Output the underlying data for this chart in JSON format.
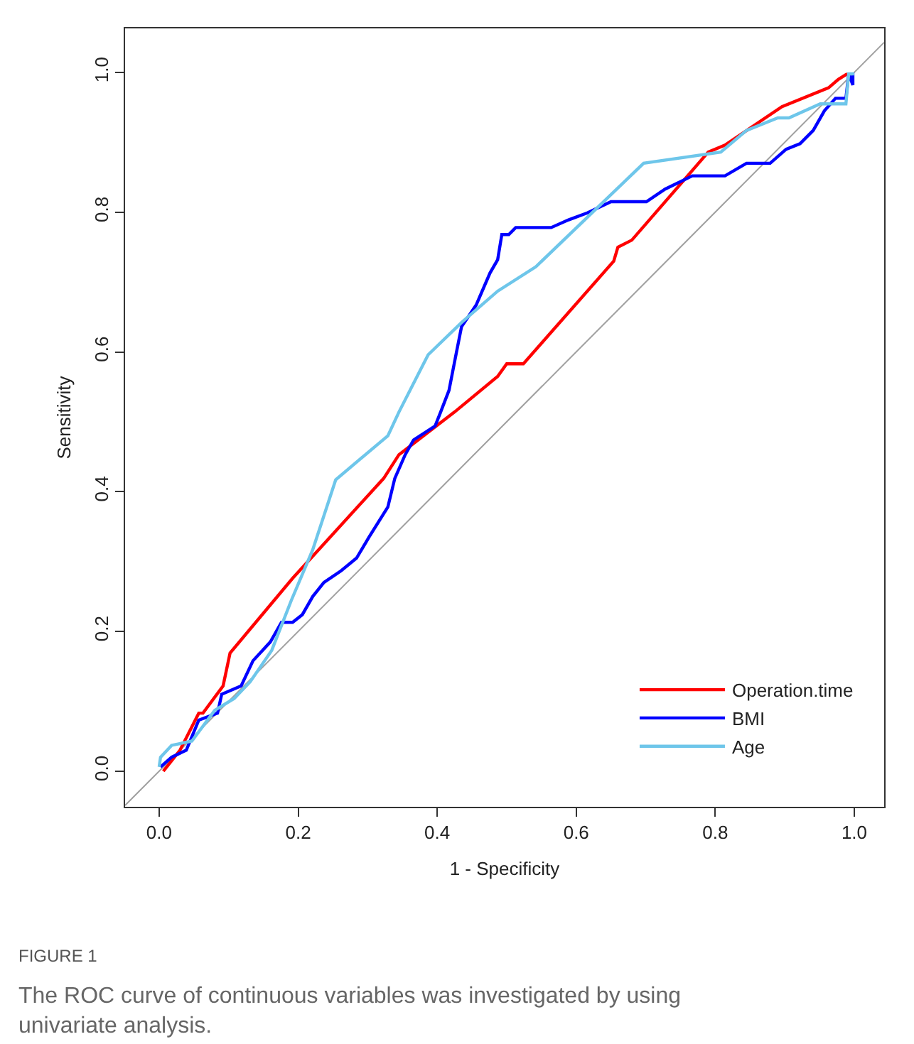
{
  "chart_data": {
    "type": "line",
    "xlabel": "1 - Specificity",
    "ylabel": "Sensitivity",
    "xlim": [
      -0.049,
      1.043
    ],
    "ylim": [
      -0.051,
      1.063
    ],
    "xticks": [
      {
        "value": 0,
        "label": "0.0"
      },
      {
        "value": 0.2,
        "label": "0.2"
      },
      {
        "value": 0.4,
        "label": "0.4"
      },
      {
        "value": 0.6,
        "label": "0.6"
      },
      {
        "value": 0.8,
        "label": "0.8"
      },
      {
        "value": 1,
        "label": "1.0"
      }
    ],
    "yticks": [
      {
        "value": 0,
        "label": "0.0"
      },
      {
        "value": 0.2,
        "label": "0.2"
      },
      {
        "value": 0.4,
        "label": "0.4"
      },
      {
        "value": 0.6,
        "label": "0.6"
      },
      {
        "value": 0.8,
        "label": "0.8"
      },
      {
        "value": 1,
        "label": "1.0"
      }
    ],
    "legend": "bottom right",
    "marker": "none",
    "line_style": "solid",
    "series": [
      {
        "color": "#a0a0a0",
        "x": [
          -0.049,
          1.043
        ],
        "values": [
          -0.049,
          1.043
        ]
      },
      {
        "name": "Operation.time",
        "color": "#ff0000",
        "x": [
          0.006,
          0.03,
          0.057,
          0.063,
          0.092,
          0.102,
          0.192,
          0.323,
          0.345,
          0.425,
          0.487,
          0.5,
          0.524,
          0.654,
          0.66,
          0.68,
          0.79,
          0.814,
          0.896,
          0.963,
          0.977,
          0.99
        ],
        "values": [
          0.0,
          0.03,
          0.083,
          0.083,
          0.122,
          0.169,
          0.276,
          0.419,
          0.453,
          0.514,
          0.565,
          0.583,
          0.583,
          0.73,
          0.75,
          0.76,
          0.886,
          0.896,
          0.951,
          0.978,
          0.99,
          0.998
        ]
      },
      {
        "name": "BMI",
        "color": "#0000ff",
        "x": [
          0.002,
          0.018,
          0.039,
          0.057,
          0.084,
          0.09,
          0.118,
          0.135,
          0.16,
          0.176,
          0.192,
          0.206,
          0.221,
          0.237,
          0.262,
          0.284,
          0.302,
          0.329,
          0.339,
          0.354,
          0.366,
          0.397,
          0.405,
          0.417,
          0.427,
          0.435,
          0.456,
          0.476,
          0.487,
          0.493,
          0.503,
          0.513,
          0.564,
          0.589,
          0.616,
          0.65,
          0.701,
          0.728,
          0.767,
          0.814,
          0.845,
          0.879,
          0.902,
          0.922,
          0.941,
          0.957,
          0.973,
          0.988,
          0.992,
          0.998,
          0.998
        ],
        "values": [
          0.006,
          0.02,
          0.03,
          0.073,
          0.083,
          0.11,
          0.122,
          0.158,
          0.185,
          0.213,
          0.213,
          0.224,
          0.25,
          0.27,
          0.287,
          0.305,
          0.335,
          0.378,
          0.419,
          0.453,
          0.474,
          0.494,
          0.514,
          0.545,
          0.596,
          0.636,
          0.667,
          0.713,
          0.732,
          0.768,
          0.768,
          0.778,
          0.778,
          0.789,
          0.799,
          0.815,
          0.815,
          0.833,
          0.852,
          0.852,
          0.87,
          0.87,
          0.89,
          0.898,
          0.917,
          0.945,
          0.963,
          0.963,
          0.998,
          0.982,
          1.0
        ]
      },
      {
        "name": "Age",
        "color": "#6ec6ea",
        "x": [
          0.0,
          0.002,
          0.018,
          0.047,
          0.08,
          0.108,
          0.131,
          0.162,
          0.19,
          0.221,
          0.254,
          0.329,
          0.345,
          0.387,
          0.435,
          0.487,
          0.542,
          0.697,
          0.808,
          0.845,
          0.89,
          0.906,
          0.951,
          0.988,
          0.992,
          1.0
        ],
        "values": [
          0.006,
          0.02,
          0.037,
          0.043,
          0.087,
          0.104,
          0.128,
          0.173,
          0.244,
          0.317,
          0.417,
          0.48,
          0.514,
          0.596,
          0.642,
          0.687,
          0.722,
          0.87,
          0.886,
          0.917,
          0.935,
          0.935,
          0.955,
          0.955,
          0.998,
          0.998
        ]
      }
    ],
    "annotations": [
      "FIGURE 1",
      "The ROC curve of continuous variables was investigated by using univariate analysis."
    ]
  }
}
